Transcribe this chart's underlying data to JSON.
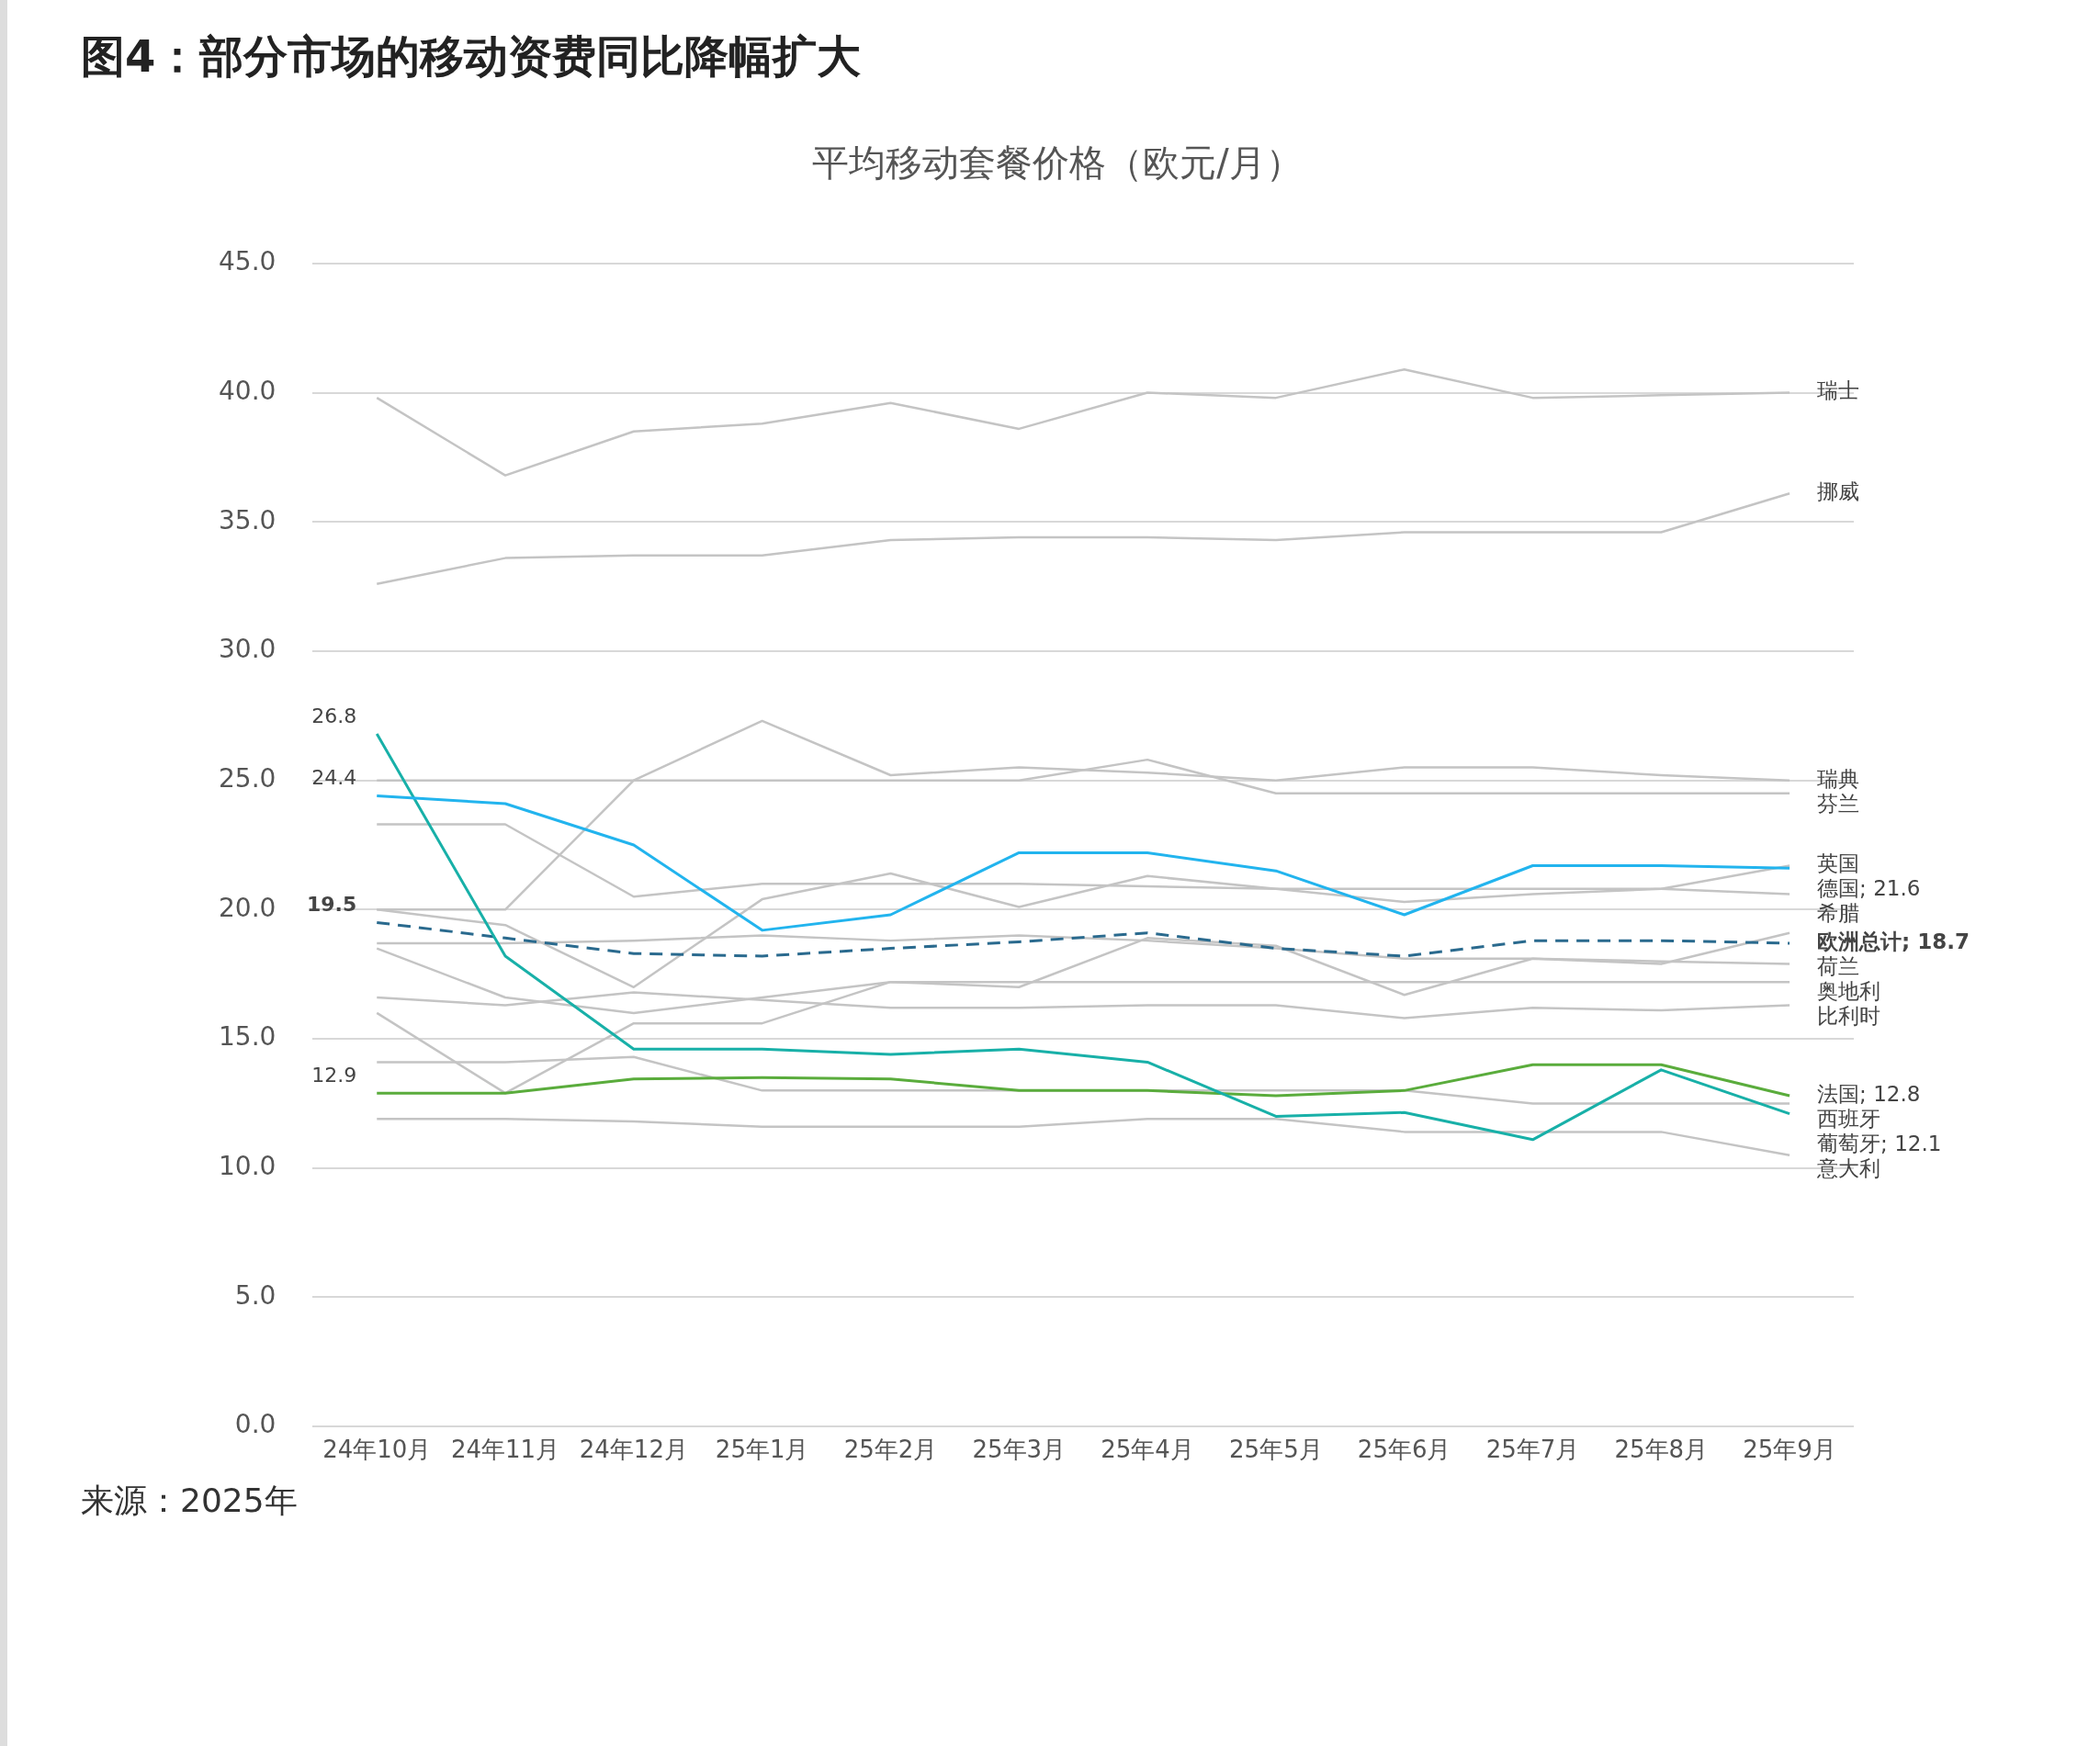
{
  "chart_data": {
    "type": "line",
    "title": "图4：部分市场的移动资费同比降幅扩大",
    "subtitle": "平均移动套餐价格（欧元/月）",
    "categories": [
      "24年10月",
      "24年11月",
      "24年12月",
      "25年1月",
      "25年2月",
      "25年3月",
      "25年4月",
      "25年5月",
      "25年6月",
      "25年7月",
      "25年8月",
      "25年9月"
    ],
    "series": [
      {
        "name": "德国;",
        "color": "#22b4ee",
        "values": [
          24.4,
          24.1,
          22.5,
          19.2,
          19.8,
          22.2,
          22.2,
          21.5,
          19.8,
          21.7,
          21.7,
          21.6
        ],
        "value_labels": [
          "24.4",
          null,
          null,
          null,
          null,
          null,
          null,
          null,
          null,
          null,
          null,
          "21.6"
        ]
      },
      {
        "name": "葡萄牙;",
        "color": "#18b0a8",
        "values": [
          26.8,
          18.2,
          14.6,
          14.6,
          14.4,
          14.6,
          14.1,
          12.0,
          12.15,
          11.1,
          13.8,
          12.1
        ],
        "value_labels": [
          "26.8",
          null,
          null,
          null,
          null,
          null,
          null,
          null,
          null,
          null,
          null,
          "12.1"
        ]
      },
      {
        "name": "法国;",
        "color": "#5aac3c",
        "values": [
          12.9,
          12.9,
          13.45,
          13.5,
          13.45,
          13.0,
          13.0,
          12.8,
          13.0,
          14.0,
          14.0,
          12.8
        ],
        "value_labels": [
          "12.9",
          null,
          null,
          null,
          null,
          null,
          null,
          null,
          null,
          null,
          null,
          "12.8"
        ]
      },
      {
        "name": "欧洲总计;",
        "color": "#2a6a8e",
        "line_style": "dashed",
        "values": [
          19.5,
          18.9,
          18.3,
          18.2,
          18.5,
          18.75,
          19.1,
          18.5,
          18.2,
          18.8,
          18.8,
          18.7
        ],
        "value_labels": [
          "19.5",
          null,
          null,
          null,
          null,
          null,
          null,
          null,
          null,
          null,
          null,
          "18.7"
        ]
      },
      {
        "name": "瑞士",
        "color": "#c4c4c4",
        "values": [
          39.8,
          36.8,
          38.5,
          38.8,
          39.6,
          38.6,
          40.0,
          39.8,
          40.9,
          39.8,
          39.9,
          40.0
        ]
      },
      {
        "name": "挪威",
        "color": "#c4c4c4",
        "values": [
          32.6,
          33.6,
          33.7,
          33.7,
          34.3,
          34.4,
          34.4,
          34.3,
          34.6,
          34.6,
          34.6,
          36.1
        ]
      },
      {
        "name": "瑞典",
        "color": "#c4c4c4",
        "values": [
          20.0,
          20.0,
          25.0,
          27.3,
          25.2,
          25.5,
          25.3,
          25.0,
          25.5,
          25.5,
          25.2,
          25.0
        ]
      },
      {
        "name": "芬兰",
        "color": "#c4c4c4",
        "values": [
          25.0,
          25.0,
          25.0,
          25.0,
          25.0,
          25.0,
          25.8,
          24.5,
          24.5,
          24.5,
          24.5,
          24.5
        ]
      },
      {
        "name": "英国",
        "color": "#c4c4c4",
        "values": [
          20.0,
          19.4,
          17.0,
          20.4,
          21.4,
          20.1,
          21.3,
          20.8,
          20.3,
          20.6,
          20.8,
          21.7
        ]
      },
      {
        "name": "希腊",
        "color": "#c4c4c4",
        "values": [
          23.3,
          23.3,
          20.5,
          21.0,
          21.0,
          21.0,
          20.9,
          20.8,
          20.8,
          20.8,
          20.8,
          20.6
        ]
      },
      {
        "color": "#c4c4c4",
        "values": [
          16.0,
          12.9,
          15.6,
          15.6,
          17.2,
          17.0,
          18.9,
          18.6,
          16.7,
          18.1,
          17.9,
          19.1
        ]
      },
      {
        "name": "荷兰",
        "color": "#c4c4c4",
        "values": [
          18.7,
          18.7,
          18.8,
          19.0,
          18.8,
          19.0,
          18.8,
          18.5,
          18.1,
          18.1,
          18.0,
          17.9
        ]
      },
      {
        "name": "奥地利",
        "color": "#c4c4c4",
        "values": [
          18.5,
          16.6,
          16.0,
          16.6,
          17.2,
          17.2,
          17.2,
          17.2,
          17.2,
          17.2,
          17.2,
          17.2
        ]
      },
      {
        "name": "比利时",
        "color": "#c4c4c4",
        "values": [
          16.6,
          16.3,
          16.8,
          16.5,
          16.2,
          16.2,
          16.3,
          16.3,
          15.8,
          16.2,
          16.1,
          16.3
        ]
      },
      {
        "name": "西班牙",
        "color": "#c4c4c4",
        "values": [
          14.1,
          14.1,
          14.3,
          13.0,
          13.0,
          13.0,
          13.0,
          13.0,
          13.0,
          12.5,
          12.5,
          12.5
        ]
      },
      {
        "name": "意大利",
        "color": "#c4c4c4",
        "values": [
          11.9,
          11.9,
          11.8,
          11.6,
          11.6,
          11.6,
          11.9,
          11.9,
          11.4,
          11.4,
          11.4,
          10.5
        ]
      }
    ],
    "ylim": [
      0,
      45
    ],
    "yticks": [
      {
        "value": 0,
        "label": "0.0"
      },
      {
        "value": 5,
        "label": "5.0"
      },
      {
        "value": 10,
        "label": "10.0"
      },
      {
        "value": 15,
        "label": "15.0"
      },
      {
        "value": 20,
        "label": "20.0"
      },
      {
        "value": 25,
        "label": "25.0"
      },
      {
        "value": 30,
        "label": "30.0"
      },
      {
        "value": 35,
        "label": "35.0"
      },
      {
        "value": 40,
        "label": "40.0"
      },
      {
        "value": 45,
        "label": "45.0"
      }
    ],
    "grid": "y",
    "legend": false,
    "marker": "none",
    "annotations": [
      "来源：2025年"
    ]
  }
}
